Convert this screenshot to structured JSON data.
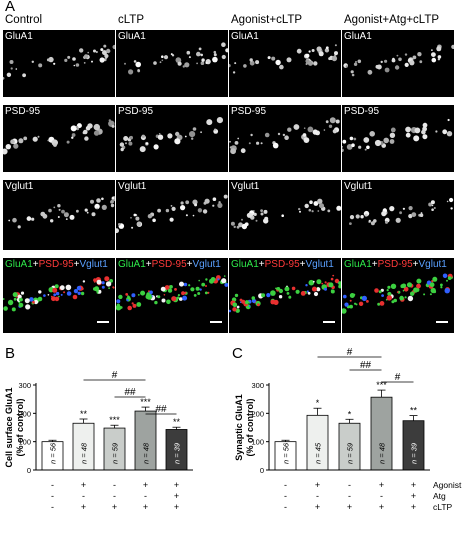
{
  "panel_a": {
    "letter": "A",
    "columns": [
      "Control",
      "cLTP",
      "Agonist+cLTP",
      "Agonist+Atg+cLTP"
    ],
    "rows": [
      "GluA1",
      "PSD-95",
      "Vglut1"
    ],
    "merge_label": {
      "part1": "GluA1",
      "plus1": "+",
      "part2": "PSD-95",
      "plus2": "+",
      "part3": "Vglut1"
    }
  },
  "chart_data": [
    {
      "type": "bar",
      "letter": "B",
      "ylabel_line1": "Cell surface GluA1",
      "ylabel_line2": "(% of control)",
      "ylim": [
        0,
        300
      ],
      "yticks": [
        "0",
        "100",
        "200",
        "300"
      ],
      "values": [
        100,
        165,
        148,
        208,
        143
      ],
      "errors": [
        5,
        15,
        10,
        14,
        8
      ],
      "stars": [
        "",
        "**",
        "***",
        "***",
        "**"
      ],
      "n_labels": [
        "n = 56",
        "n = 48",
        "n = 59",
        "n = 48",
        "n = 39"
      ],
      "fills": [
        "#ffffff",
        "#eef0ee",
        "#c9cdca",
        "#9ea3a0",
        "#3c3c3c"
      ],
      "n_text_colors": [
        "#000000",
        "#000000",
        "#000000",
        "#000000",
        "#ffffff"
      ],
      "treatment_rows": [
        [
          "-",
          "+",
          "-",
          "+",
          "+"
        ],
        [
          "-",
          "-",
          "-",
          "-",
          "+"
        ],
        [
          "-",
          "+",
          "+",
          "+",
          "+"
        ]
      ],
      "row_labels": [],
      "brackets": [
        {
          "from": 1,
          "to": 3,
          "label": "#"
        },
        {
          "from": 2,
          "to": 3,
          "label": "##"
        },
        {
          "from": 3,
          "to": 4,
          "label": "##"
        }
      ]
    },
    {
      "type": "bar",
      "letter": "C",
      "ylabel_line1": "Synaptic GluA1",
      "ylabel_line2": "(% of control)",
      "ylim": [
        0,
        300
      ],
      "yticks": [
        "0",
        "100",
        "200",
        "300"
      ],
      "values": [
        100,
        193,
        165,
        257,
        174
      ],
      "errors": [
        5,
        25,
        14,
        25,
        18
      ],
      "stars": [
        "",
        "*",
        "*",
        "***",
        "**"
      ],
      "n_labels": [
        "n = 56",
        "n = 45",
        "n = 59",
        "n = 48",
        "n = 39"
      ],
      "fills": [
        "#ffffff",
        "#eef0ee",
        "#c9cdca",
        "#9ea3a0",
        "#3c3c3c"
      ],
      "n_text_colors": [
        "#000000",
        "#000000",
        "#000000",
        "#000000",
        "#ffffff"
      ],
      "treatment_rows": [
        [
          "-",
          "+",
          "-",
          "+",
          "+"
        ],
        [
          "-",
          "-",
          "-",
          "-",
          "+"
        ],
        [
          "-",
          "+",
          "+",
          "+",
          "+"
        ]
      ],
      "row_labels": [
        "Agonist",
        "Atg",
        "cLTP"
      ],
      "brackets": [
        {
          "from": 1,
          "to": 3,
          "label": "#"
        },
        {
          "from": 2,
          "to": 3,
          "label": "##"
        },
        {
          "from": 3,
          "to": 4,
          "label": "#"
        }
      ]
    }
  ]
}
